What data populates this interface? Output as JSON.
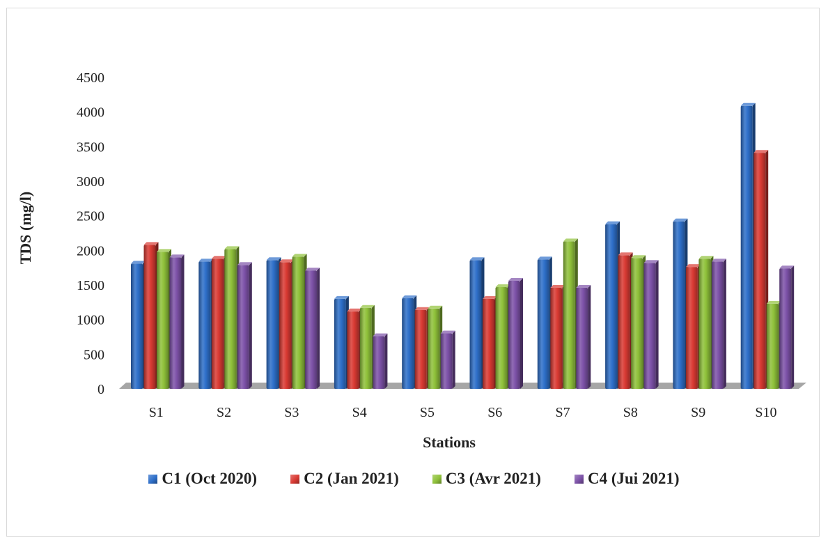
{
  "chart_data": {
    "type": "bar",
    "ylabel": "TDS (mg/l)",
    "xlabel": "Stations",
    "categories": [
      "S1",
      "S2",
      "S3",
      "S4",
      "S5",
      "S6",
      "S7",
      "S8",
      "S9",
      "S10"
    ],
    "ylim": [
      0,
      4500
    ],
    "yticks": [
      "0",
      "500",
      "1000",
      "1500",
      "2000",
      "2500",
      "3000",
      "3500",
      "4000",
      "4500"
    ],
    "grid": false,
    "legend_position": "bottom",
    "series": [
      {
        "name": "C1 (Oct 2020)",
        "color": "#2e6fc9",
        "values": [
          1810,
          1840,
          1860,
          1300,
          1310,
          1860,
          1870,
          2380,
          2420,
          4090
        ]
      },
      {
        "name": "C2 (Jan 2021)",
        "color": "#d93a33",
        "values": [
          2080,
          1880,
          1830,
          1120,
          1140,
          1300,
          1460,
          1930,
          1760,
          3410
        ]
      },
      {
        "name": "C3 (Avr 2021)",
        "color": "#8fc13a",
        "values": [
          1980,
          2020,
          1910,
          1170,
          1160,
          1470,
          2130,
          1890,
          1880,
          1230
        ]
      },
      {
        "name": "C4 (Jui 2021)",
        "color": "#7d52a8",
        "values": [
          1900,
          1790,
          1710,
          760,
          800,
          1560,
          1460,
          1820,
          1840,
          1740
        ]
      }
    ]
  }
}
